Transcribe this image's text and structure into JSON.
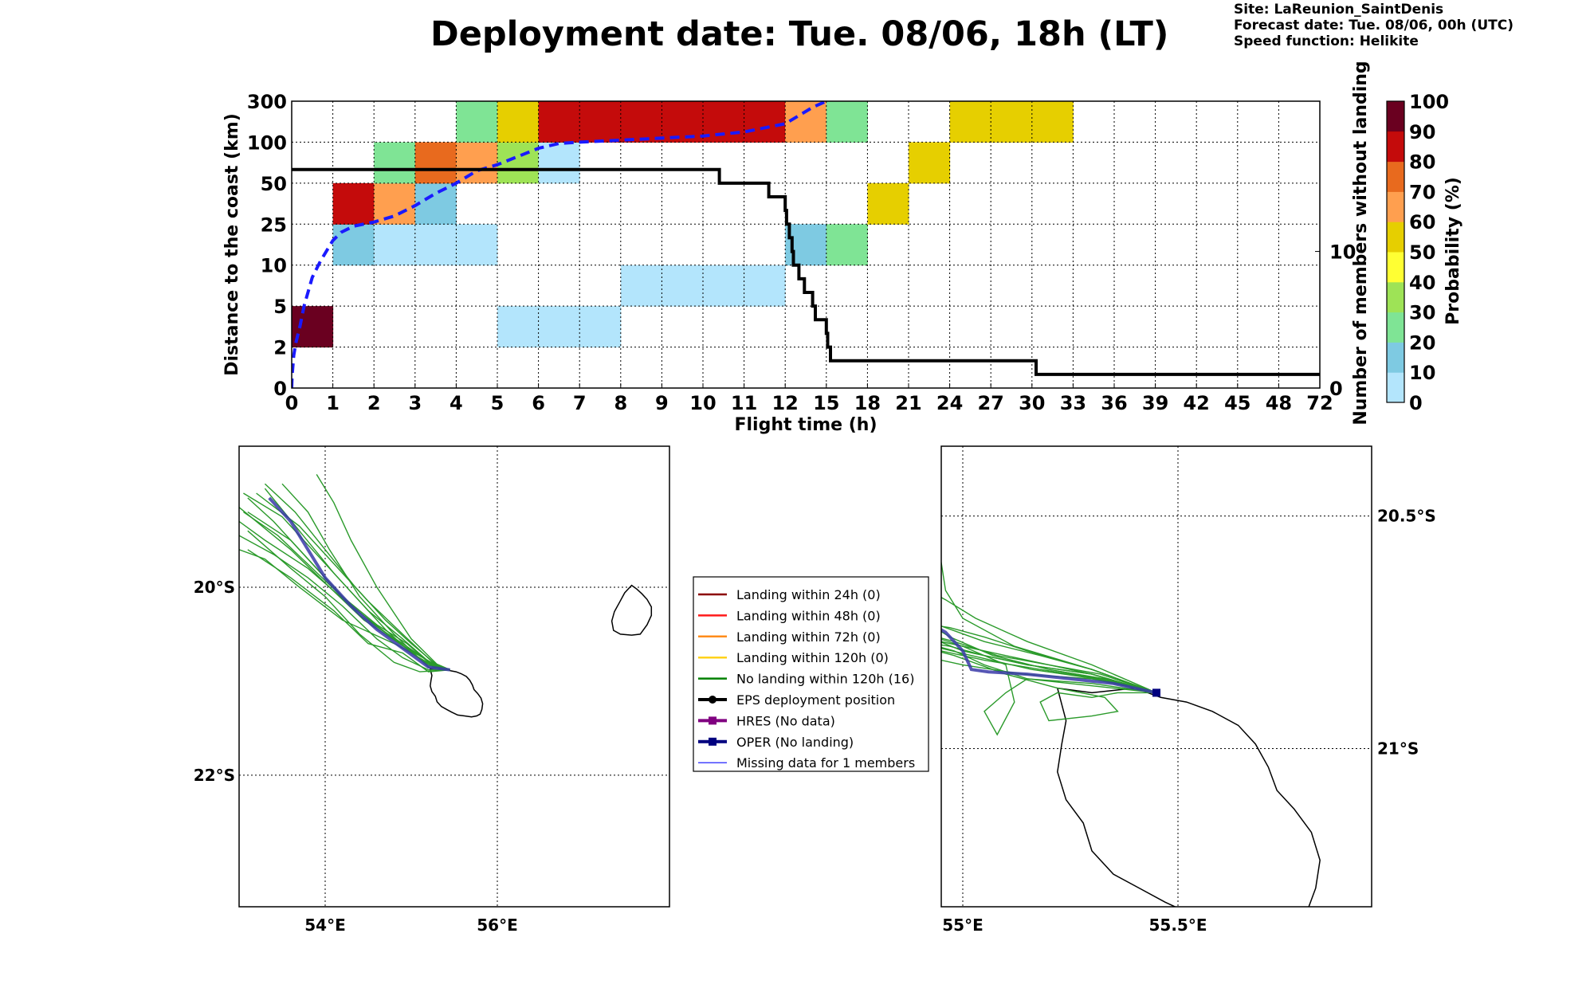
{
  "title": "Deployment date: Tue. 08/06, 18h (LT)",
  "meta": [
    "Site: LaReunion_SaintDenis",
    "Forecast date: Tue. 08/06, 00h (UTC)",
    "Speed function: Helikite"
  ],
  "chart_data": [
    {
      "type": "heatmap",
      "xlabel": "Flight time (h)",
      "ylabel": "Distance to the coast (km)",
      "y2label": "Number of members without landing",
      "x_ticks": [
        "0",
        "1",
        "2",
        "3",
        "4",
        "5",
        "6",
        "7",
        "8",
        "9",
        "10",
        "11",
        "12",
        "15",
        "18",
        "21",
        "24",
        "27",
        "30",
        "33",
        "36",
        "39",
        "42",
        "45",
        "48",
        "72"
      ],
      "y_ticks": [
        "0",
        "2",
        "5",
        "10",
        "25",
        "50",
        "100",
        "300"
      ],
      "y2_ticks": [
        "0",
        "10"
      ],
      "y2_range": [
        0,
        21
      ],
      "grid": true,
      "colorbar": {
        "label": "Probability (%)",
        "ticks": [
          "0",
          "10",
          "20",
          "30",
          "40",
          "50",
          "60",
          "70",
          "80",
          "90",
          "100"
        ],
        "colors": [
          "#b3e5fc",
          "#7ecae2",
          "#7fe495",
          "#9ee356",
          "#ffff33",
          "#e6cf00",
          "#ff9f4f",
          "#e86a1e",
          "#c40b0b",
          "#a30000",
          "#6a0020"
        ]
      },
      "cells": [
        {
          "xbin": 0,
          "ybin": 1,
          "p": 100
        },
        {
          "xbin": 1,
          "ybin": 3,
          "p": 10
        },
        {
          "xbin": 1,
          "ybin": 4,
          "p": 80
        },
        {
          "xbin": 2,
          "ybin": 3,
          "p": 0
        },
        {
          "xbin": 2,
          "ybin": 4,
          "p": 60
        },
        {
          "xbin": 2,
          "ybin": 5,
          "p": 20
        },
        {
          "xbin": 3,
          "ybin": 3,
          "p": 0
        },
        {
          "xbin": 3,
          "ybin": 4,
          "p": 10
        },
        {
          "xbin": 3,
          "ybin": 5,
          "p": 70
        },
        {
          "xbin": 4,
          "ybin": 3,
          "p": 0
        },
        {
          "xbin": 4,
          "ybin": 5,
          "p": 60
        },
        {
          "xbin": 4,
          "ybin": 6,
          "p": 20
        },
        {
          "xbin": 5,
          "ybin": 1,
          "p": 0
        },
        {
          "xbin": 5,
          "ybin": 5,
          "p": 30
        },
        {
          "xbin": 5,
          "ybin": 6,
          "p": 50
        },
        {
          "xbin": 6,
          "ybin": 1,
          "p": 0
        },
        {
          "xbin": 6,
          "ybin": 5,
          "p": 0
        },
        {
          "xbin": 6,
          "ybin": 6,
          "p": 80
        },
        {
          "xbin": 7,
          "ybin": 1,
          "p": 0
        },
        {
          "xbin": 7,
          "ybin": 6,
          "p": 80
        },
        {
          "xbin": 8,
          "ybin": 2,
          "p": 0
        },
        {
          "xbin": 8,
          "ybin": 6,
          "p": 80
        },
        {
          "xbin": 9,
          "ybin": 2,
          "p": 0
        },
        {
          "xbin": 9,
          "ybin": 6,
          "p": 80
        },
        {
          "xbin": 10,
          "ybin": 2,
          "p": 0
        },
        {
          "xbin": 10,
          "ybin": 6,
          "p": 80
        },
        {
          "xbin": 11,
          "ybin": 2,
          "p": 0
        },
        {
          "xbin": 11,
          "ybin": 6,
          "p": 80
        },
        {
          "xbin": 12,
          "ybin": 3,
          "p": 10
        },
        {
          "xbin": 12,
          "ybin": 6,
          "p": 60
        },
        {
          "xbin": 13,
          "ybin": 3,
          "p": 20
        },
        {
          "xbin": 13,
          "ybin": 6,
          "p": 20
        },
        {
          "xbin": 14,
          "ybin": 4,
          "p": 50
        },
        {
          "xbin": 15,
          "ybin": 5,
          "p": 50
        },
        {
          "xbin": 16,
          "ybin": 6,
          "p": 50
        },
        {
          "xbin": 17,
          "ybin": 6,
          "p": 50
        },
        {
          "xbin": 18,
          "ybin": 6,
          "p": 50
        }
      ],
      "series": [
        {
          "x": [
            0,
            0.01,
            0.05,
            0.1,
            0.2,
            0.3,
            0.5,
            0.7,
            1,
            1.2,
            1.5,
            2,
            2.5,
            3,
            3.5,
            4,
            4.5,
            5,
            5.5,
            6,
            6.5,
            7,
            8,
            9,
            10,
            11,
            12,
            13,
            14,
            15
          ],
          "y": [
            0,
            0.3,
            0.8,
            1.1,
            1.5,
            2,
            2.7,
            3.1,
            3.6,
            3.8,
            3.95,
            4.05,
            4.2,
            4.45,
            4.75,
            5,
            5.3,
            5.45,
            5.65,
            5.85,
            5.97,
            6,
            6.05,
            6.1,
            6.15,
            6.25,
            6.45,
            6.65,
            6.85,
            7
          ]
        },
        {
          "x": [
            0,
            10.3,
            10.4,
            11.4,
            11.6,
            11.8,
            12,
            12.05,
            12.1,
            12.2,
            12.3,
            12.5,
            12.6,
            13,
            13.4,
            14,
            14.2,
            15,
            15.1,
            15.3,
            30,
            30.3,
            72
          ],
          "y2": [
            16,
            16,
            15,
            15,
            14,
            14,
            13,
            13,
            12,
            12,
            11,
            10,
            9,
            8,
            7,
            6,
            5,
            4,
            3,
            2,
            2,
            1,
            1
          ]
        }
      ]
    },
    {
      "type": "map",
      "x_ticks": [
        "54°E",
        "56°E"
      ],
      "y_ticks": [
        "20°S",
        "22°S"
      ],
      "xlim": [
        53,
        58
      ],
      "ylim": [
        -23.4,
        -18.5
      ]
    },
    {
      "type": "map",
      "x_ticks": [
        "55°E",
        "55.5°E"
      ],
      "y_ticks": [
        "20.5°S",
        "21°S"
      ],
      "xlim": [
        54.95,
        55.95
      ],
      "ylim": [
        -21.34,
        -20.35
      ]
    }
  ],
  "legend": [
    {
      "label": "Landing within 24h (0)",
      "color": "#8b0000",
      "marker": "none"
    },
    {
      "label": "Landing within 48h (0)",
      "color": "#ff1a1a",
      "marker": "none"
    },
    {
      "label": "Landing within 72h (0)",
      "color": "#ff8c1a",
      "marker": "none"
    },
    {
      "label": "Landing within 120h (0)",
      "color": "#ffd21a",
      "marker": "none"
    },
    {
      "label": "No landing within 120h (16)",
      "color": "#008000",
      "marker": "none"
    },
    {
      "label": "EPS deployment position",
      "color": "#000000",
      "marker": "dot"
    },
    {
      "label": "HRES (No data)",
      "color": "#800080",
      "marker": "square"
    },
    {
      "label": "OPER (No landing)",
      "color": "#00007f",
      "marker": "square"
    },
    {
      "label": "Missing data for 1 members",
      "color": "#4444ff",
      "marker": "thin"
    }
  ]
}
